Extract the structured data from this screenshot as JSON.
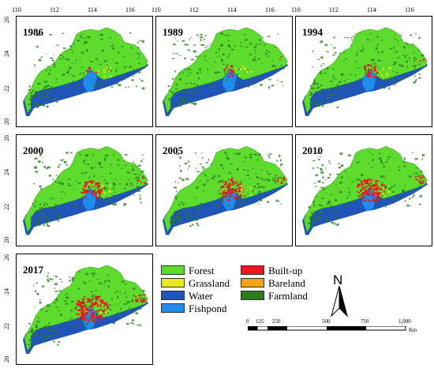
{
  "panels": [
    {
      "year": "1986",
      "lon_ticks": [
        "110",
        "112",
        "114",
        "116"
      ],
      "lat_ticks": [
        "26",
        "24",
        "22",
        "20"
      ],
      "builtup_level": 0
    },
    {
      "year": "1989",
      "lon_ticks": [
        "110",
        "112",
        "114",
        "116"
      ],
      "lat_ticks": [],
      "builtup_level": 1
    },
    {
      "year": "1994",
      "lon_ticks": [
        "110",
        "112",
        "114",
        "116"
      ],
      "lat_ticks": [],
      "builtup_level": 2
    },
    {
      "year": "2000",
      "lon_ticks": [],
      "lat_ticks": [
        "26",
        "24",
        "22",
        "20"
      ],
      "builtup_level": 3
    },
    {
      "year": "2005",
      "lon_ticks": [],
      "lat_ticks": [],
      "builtup_level": 4
    },
    {
      "year": "2010",
      "lon_ticks": [],
      "lat_ticks": [],
      "builtup_level": 5
    },
    {
      "year": "2017",
      "lon_ticks": [],
      "lat_ticks": [
        "26",
        "24",
        "22",
        "20"
      ],
      "builtup_level": 6
    }
  ],
  "legend": {
    "items": [
      {
        "label": "Forest",
        "color": "#5ddc2e"
      },
      {
        "label": "Grassland",
        "color": "#e6ea1c"
      },
      {
        "label": "Water",
        "color": "#1f55b8"
      },
      {
        "label": "Fishpond",
        "color": "#1f8cf0"
      },
      {
        "label": "Built-up",
        "color": "#e8191c"
      },
      {
        "label": "Bareland",
        "color": "#f5a60e"
      },
      {
        "label": "Farmland",
        "color": "#2c7a1e"
      }
    ]
  },
  "north_arrow": {
    "label": "N"
  },
  "scale_bar": {
    "labels": [
      "0",
      "125",
      "250",
      "500",
      "750",
      "1,000"
    ],
    "unit": "Km"
  }
}
